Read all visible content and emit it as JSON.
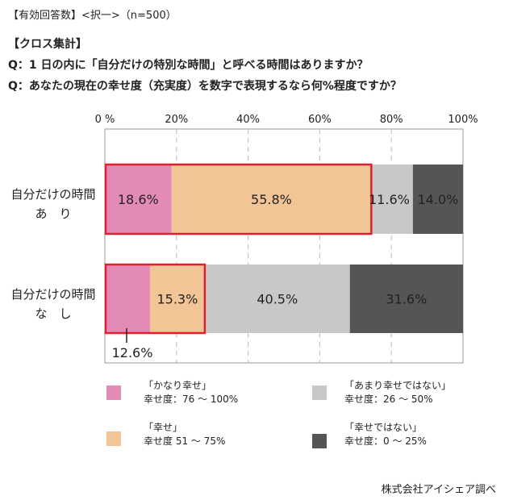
{
  "note": "【有効回答数】<択一>（n=500）",
  "section_title": "【クロス集計】",
  "questions": [
    "Q：1 日の内に「自分だけの特別な時間」と呼べる時間はありますか？",
    "Q：あなたの現在の幸せ度（充実度）を数字で表現するなら何%程度ですか？"
  ],
  "source": "株式会社アイシェア調べ",
  "legend": [
    {
      "name": "「かなり幸せ」",
      "sub": "幸せ度：76 〜 100%",
      "color": "#e48ab6"
    },
    {
      "name": "「あまり幸せではない」",
      "sub": "幸せ度：26 〜 50%",
      "color": "#c8c8c8"
    },
    {
      "name": "「幸せ」",
      "sub": "幸せ度 51 〜 75%",
      "color": "#f2c597"
    },
    {
      "name": "「幸せではない」",
      "sub": "幸せ度：0 〜 25%",
      "color": "#555555"
    }
  ],
  "chart_data": {
    "type": "bar",
    "orientation": "horizontal",
    "stacked": true,
    "title": "",
    "xlim": [
      0,
      100
    ],
    "x_ticks": [
      "0 %",
      "20%",
      "40%",
      "60%",
      "80%",
      "100%"
    ],
    "categories": [
      {
        "line1": "自分だけの時間",
        "line2": "あ　り"
      },
      {
        "line1": "自分だけの時間",
        "line2": "な　し"
      }
    ],
    "series": [
      {
        "name": "「かなり幸せ」",
        "color": "#e48ab6",
        "values": [
          18.6,
          12.6
        ],
        "labels": [
          "18.6%",
          "12.6%"
        ]
      },
      {
        "name": "「幸せ」",
        "color": "#f2c597",
        "values": [
          55.8,
          15.3
        ],
        "labels": [
          "55.8%",
          "15.3%"
        ]
      },
      {
        "name": "「あまり幸せではない」",
        "color": "#c8c8c8",
        "values": [
          11.6,
          40.5
        ],
        "labels": [
          "11.6%",
          "40.5%"
        ]
      },
      {
        "name": "「幸せではない」",
        "color": "#555555",
        "values": [
          14.0,
          31.6
        ],
        "labels": [
          "14.0%",
          "31.6%"
        ]
      }
    ],
    "highlight_color": "#e0202e",
    "highlight_series_count": 2,
    "grid": true
  }
}
